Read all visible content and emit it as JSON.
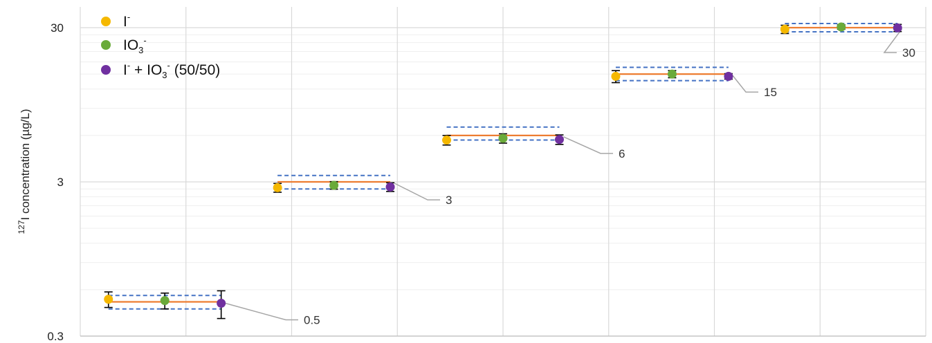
{
  "chart_data": {
    "type": "scatter",
    "xlabel": "",
    "ylabel": {
      "sup": "127",
      "text": "I concentration (µg/L)"
    },
    "yscale": "log",
    "ylim": [
      0.3,
      45
    ],
    "yticks": [
      "0.3",
      "3",
      "30"
    ],
    "grid": true,
    "legend_position": "top-left",
    "colors": {
      "iodide": "#F5B800",
      "iodate": "#6AAA3A",
      "mix": "#7030A0",
      "nominal_line": "#ED7D31",
      "limit_line": "#4472C4",
      "callout_line": "#A6A6A6",
      "error_bar": "#000000",
      "grid": "#D9D9D9"
    },
    "legend": [
      {
        "key": "iodide",
        "base": "I",
        "sub": "",
        "sup": "-",
        "tail": ""
      },
      {
        "key": "iodate",
        "base": "IO",
        "sub": "3",
        "sup": "-",
        "tail": ""
      },
      {
        "key": "mix",
        "base": "I",
        "sub": "",
        "sup": "-",
        "tail": " + IO",
        "sub2": "3",
        "sup2": "-",
        "tail2": " (50/50)"
      }
    ],
    "groups": [
      {
        "nominal": 0.5,
        "label": "0.5",
        "upper": 0.55,
        "lower": 0.45,
        "points": {
          "iodide": [
            0.52,
            0.06
          ],
          "iodate": [
            0.51,
            0.06
          ],
          "mix": [
            0.49,
            0.1
          ]
        }
      },
      {
        "nominal": 3,
        "label": "3",
        "upper": 3.3,
        "lower": 2.7,
        "points": {
          "iodide": [
            2.75,
            0.18
          ],
          "iodate": [
            2.85,
            0.16
          ],
          "mix": [
            2.78,
            0.18
          ]
        }
      },
      {
        "nominal": 6,
        "label": "6",
        "upper": 6.8,
        "lower": 5.6,
        "points": {
          "iodide": [
            5.6,
            0.4
          ],
          "iodate": [
            5.75,
            0.4
          ],
          "mix": [
            5.65,
            0.4
          ]
        }
      },
      {
        "nominal": 15,
        "label": "15",
        "upper": 16.6,
        "lower": 13.6,
        "points": {
          "iodide": [
            14.5,
            1.3
          ],
          "iodate": [
            15.0,
            0.8
          ],
          "mix": [
            14.5,
            0.6
          ]
        }
      },
      {
        "nominal": 30,
        "label": "30",
        "upper": 31.9,
        "lower": 28.2,
        "points": {
          "iodide": [
            29.3,
            1.8
          ],
          "iodate": [
            30.3,
            1.0
          ],
          "mix": [
            29.9,
            1.6
          ]
        }
      }
    ]
  }
}
